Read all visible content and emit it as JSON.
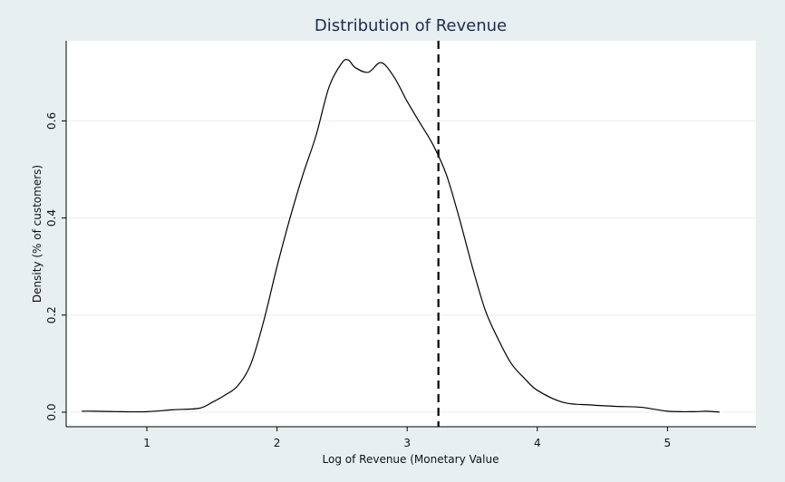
{
  "chart_data": {
    "type": "line",
    "title": "Distribution of Revenue",
    "xlabel": "Log of Revenue (Monetary Value",
    "ylabel": "Density (% of customers)",
    "xlim": [
      0.38,
      5.68
    ],
    "ylim": [
      -0.03,
      0.765
    ],
    "x_ticks": [
      1,
      2,
      3,
      4,
      5
    ],
    "x_tick_labels": [
      "1",
      "2",
      "3",
      "4",
      "5"
    ],
    "y_ticks": [
      0,
      0.2,
      0.4,
      0.6
    ],
    "y_tick_labels": [
      "0.0",
      "0.2",
      "0.4",
      "0.6"
    ],
    "grid": true,
    "reference_line_x": 3.24,
    "series": [
      {
        "x": [
          0.5,
          0.6,
          0.8,
          1.0,
          1.2,
          1.4,
          1.5,
          1.6,
          1.7,
          1.8,
          1.9,
          2.0,
          2.1,
          2.2,
          2.3,
          2.4,
          2.5,
          2.55,
          2.6,
          2.7,
          2.8,
          2.9,
          3.0,
          3.1,
          3.2,
          3.3,
          3.4,
          3.5,
          3.6,
          3.7,
          3.8,
          3.9,
          4.0,
          4.2,
          4.4,
          4.6,
          4.8,
          5.0,
          5.2,
          5.3,
          5.4
        ],
        "y": [
          0.002,
          0.002,
          0.001,
          0.001,
          0.005,
          0.008,
          0.02,
          0.035,
          0.055,
          0.1,
          0.19,
          0.3,
          0.4,
          0.49,
          0.57,
          0.67,
          0.72,
          0.725,
          0.71,
          0.7,
          0.72,
          0.69,
          0.64,
          0.595,
          0.55,
          0.49,
          0.4,
          0.3,
          0.21,
          0.15,
          0.1,
          0.07,
          0.045,
          0.02,
          0.015,
          0.012,
          0.01,
          0.002,
          0.001,
          0.002,
          0.0
        ]
      }
    ]
  }
}
